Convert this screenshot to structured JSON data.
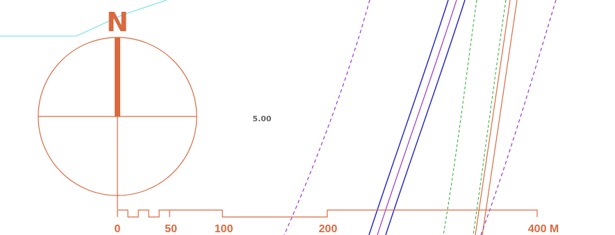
{
  "colors": {
    "accent": "#d9693f",
    "road_blue": "#1a1acc",
    "boundary_purple": "#9933cc",
    "boundary_green": "#22aa22",
    "water_cyan": "#66e0e0",
    "label_gray": "#666666"
  },
  "north_arrow": {
    "label": "N",
    "icon": "compass-icon"
  },
  "elevation_label": "5.00",
  "scale_bar": {
    "labels": [
      "0",
      "50",
      "100",
      "200",
      "400 M"
    ]
  },
  "map_lines": [
    {
      "name": "dashed-purple-boundary-west",
      "type": "dashed",
      "color": "purple"
    },
    {
      "name": "road-blue-west",
      "type": "solid",
      "color": "blue"
    },
    {
      "name": "road-purple-center",
      "type": "solid",
      "color": "purple"
    },
    {
      "name": "road-blue-east",
      "type": "solid",
      "color": "blue"
    },
    {
      "name": "dashed-green-boundary-1",
      "type": "dashed",
      "color": "green"
    },
    {
      "name": "dashed-green-boundary-2",
      "type": "dashed",
      "color": "green"
    },
    {
      "name": "road-orange-1",
      "type": "solid",
      "color": "orange"
    },
    {
      "name": "road-orange-2",
      "type": "solid",
      "color": "orange"
    },
    {
      "name": "dashed-purple-boundary-east",
      "type": "dashed",
      "color": "purple"
    },
    {
      "name": "water-cyan-edge",
      "type": "solid",
      "color": "cyan"
    }
  ]
}
